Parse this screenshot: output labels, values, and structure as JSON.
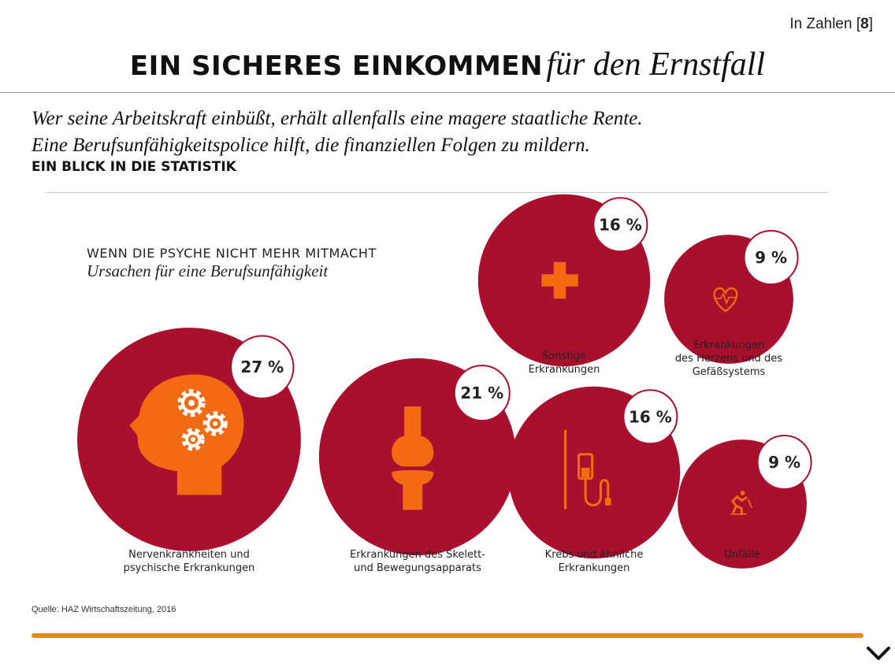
{
  "page": {
    "section_label": "In Zahlen",
    "section_number": "8",
    "headline_caps": "EIN SICHERES EINKOMMEN",
    "headline_italic": "für den Ernstfall",
    "intro_line1": "Wer seine Arbeitskraft einbüßt, erhält allenfalls eine magere staatliche Rente.",
    "intro_line2": "Eine Berufsunfähigkeitspolice hilft, die finanziellen Folgen zu mildern.",
    "kicker": "EIN BLICK IN DIE STATISTIK",
    "source": "Quelle: HAZ Wirtschaftszeitung, 2016"
  },
  "colors": {
    "circle": "#a8102e",
    "icon": "#f26a12",
    "badge_border": "#a8102e",
    "accent_bar": "#e08a1e"
  },
  "chart_data": {
    "type": "bubble",
    "title": "WENN DIE PSYCHE NICHT MEHR MITMACHT",
    "subtitle": "Ursachen für eine Berufsunfähigkeit",
    "unit": "%",
    "items": [
      {
        "id": "nerven",
        "label_lines": [
          "Nervenkrankheiten und",
          "psychische Erkrankungen"
        ],
        "value": 27,
        "value_label": "27 %",
        "icon": "head-gears-icon"
      },
      {
        "id": "skelett",
        "label_lines": [
          "Erkrankungen des Skelett-",
          "und Bewegungsapparats"
        ],
        "value": 21,
        "value_label": "21 %",
        "icon": "bone-joint-icon"
      },
      {
        "id": "krebs",
        "label_lines": [
          "Krebs und ähnliche",
          "Erkrankungen"
        ],
        "value": 16,
        "value_label": "16 %",
        "icon": "iv-drip-icon"
      },
      {
        "id": "sonstige",
        "label_lines": [
          "Sonstige",
          "Erkrankungen"
        ],
        "value": 16,
        "value_label": "16 %",
        "icon": "medical-cross-icon"
      },
      {
        "id": "herz",
        "label_lines": [
          "Erkrankungen",
          "des Herzens und des",
          "Gefäßsystems"
        ],
        "value": 9,
        "value_label": "9 %",
        "icon": "heart-pulse-icon"
      },
      {
        "id": "unfaelle",
        "label_lines": [
          "Unfälle"
        ],
        "value": 9,
        "value_label": "9 %",
        "icon": "falling-person-icon"
      }
    ]
  }
}
